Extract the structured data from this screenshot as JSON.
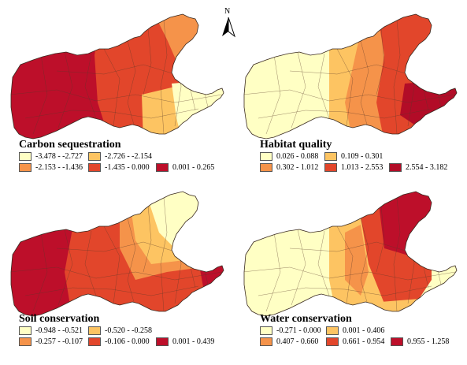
{
  "north_arrow": {
    "label": "N"
  },
  "panels": [
    {
      "id": "carbon",
      "title": "Carbon sequestration",
      "legend": [
        {
          "label": "-3.478 - -2.727",
          "color": "#ffffc4"
        },
        {
          "label": "-2.726 - -2.154",
          "color": "#fdc462"
        },
        {
          "label": "-2.153 - -1.436",
          "color": "#f5934a"
        },
        {
          "label": "-1.435 - 0.000",
          "color": "#e2462b"
        },
        {
          "label": "0.001 - 0.265",
          "color": "#bd0f2a"
        }
      ]
    },
    {
      "id": "habitat",
      "title": "Habitat quality",
      "legend": [
        {
          "label": "0.026 - 0.088",
          "color": "#ffffc4"
        },
        {
          "label": "0.109 - 0.301",
          "color": "#fdc462"
        },
        {
          "label": "0.302 - 1.012",
          "color": "#f5934a"
        },
        {
          "label": "1.013 - 2.553",
          "color": "#e2462b"
        },
        {
          "label": "2.554 - 3.182",
          "color": "#b20c27"
        }
      ]
    },
    {
      "id": "soil",
      "title": "Soil conservation",
      "legend": [
        {
          "label": "-0.948 - -0.521",
          "color": "#ffffc4"
        },
        {
          "label": "-0.520 - -0.258",
          "color": "#fdc462"
        },
        {
          "label": "-0.257 - -0.107",
          "color": "#f5934a"
        },
        {
          "label": "-0.106 - 0.000",
          "color": "#e2462b"
        },
        {
          "label": "0.001 - 0.439",
          "color": "#bd0f2a"
        }
      ]
    },
    {
      "id": "water",
      "title": "Water conservation",
      "legend": [
        {
          "label": "-0.271 - 0.000",
          "color": "#ffffc4"
        },
        {
          "label": "0.001 - 0.406",
          "color": "#fdc462"
        },
        {
          "label": "0.407 - 0.660",
          "color": "#f5934a"
        },
        {
          "label": "0.661 - 0.954",
          "color": "#e2462b"
        },
        {
          "label": "0.955 - 1.258",
          "color": "#bd0f2a"
        }
      ]
    }
  ]
}
